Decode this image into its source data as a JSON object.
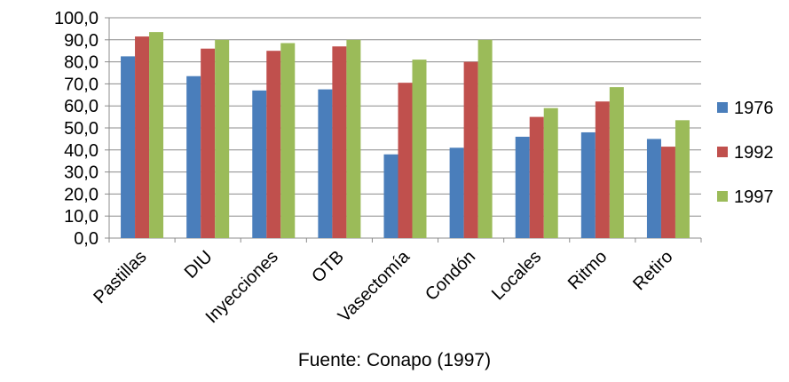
{
  "source_note": "Fuente: Conapo (1997)",
  "chart_data": {
    "type": "bar",
    "categories": [
      "Pastillas",
      "DIU",
      "Inyecciones",
      "OTB",
      "Vasectomía",
      "Condón",
      "Locales",
      "Ritmo",
      "Retiro"
    ],
    "series": [
      {
        "name": "1976",
        "color": "#4a7ebb",
        "values": [
          82.5,
          73.5,
          67.0,
          67.5,
          38.0,
          41.0,
          46.0,
          48.0,
          45.0
        ]
      },
      {
        "name": "1992",
        "color": "#c0504d",
        "values": [
          91.5,
          86.0,
          85.0,
          87.0,
          70.5,
          80.0,
          55.0,
          62.0,
          41.5
        ]
      },
      {
        "name": "1997",
        "color": "#9bbb59",
        "values": [
          93.5,
          90.0,
          88.5,
          90.0,
          81.0,
          90.0,
          59.0,
          68.5,
          53.5
        ]
      }
    ],
    "ylim": [
      0,
      100
    ],
    "yticks": [
      "0,0",
      "10,0",
      "20,0",
      "30,0",
      "40,0",
      "50,0",
      "60,0",
      "70,0",
      "80,0",
      "90,0",
      "100,0"
    ],
    "title": "",
    "xlabel": "",
    "ylabel": "",
    "grid": true,
    "legend_position": "right"
  }
}
